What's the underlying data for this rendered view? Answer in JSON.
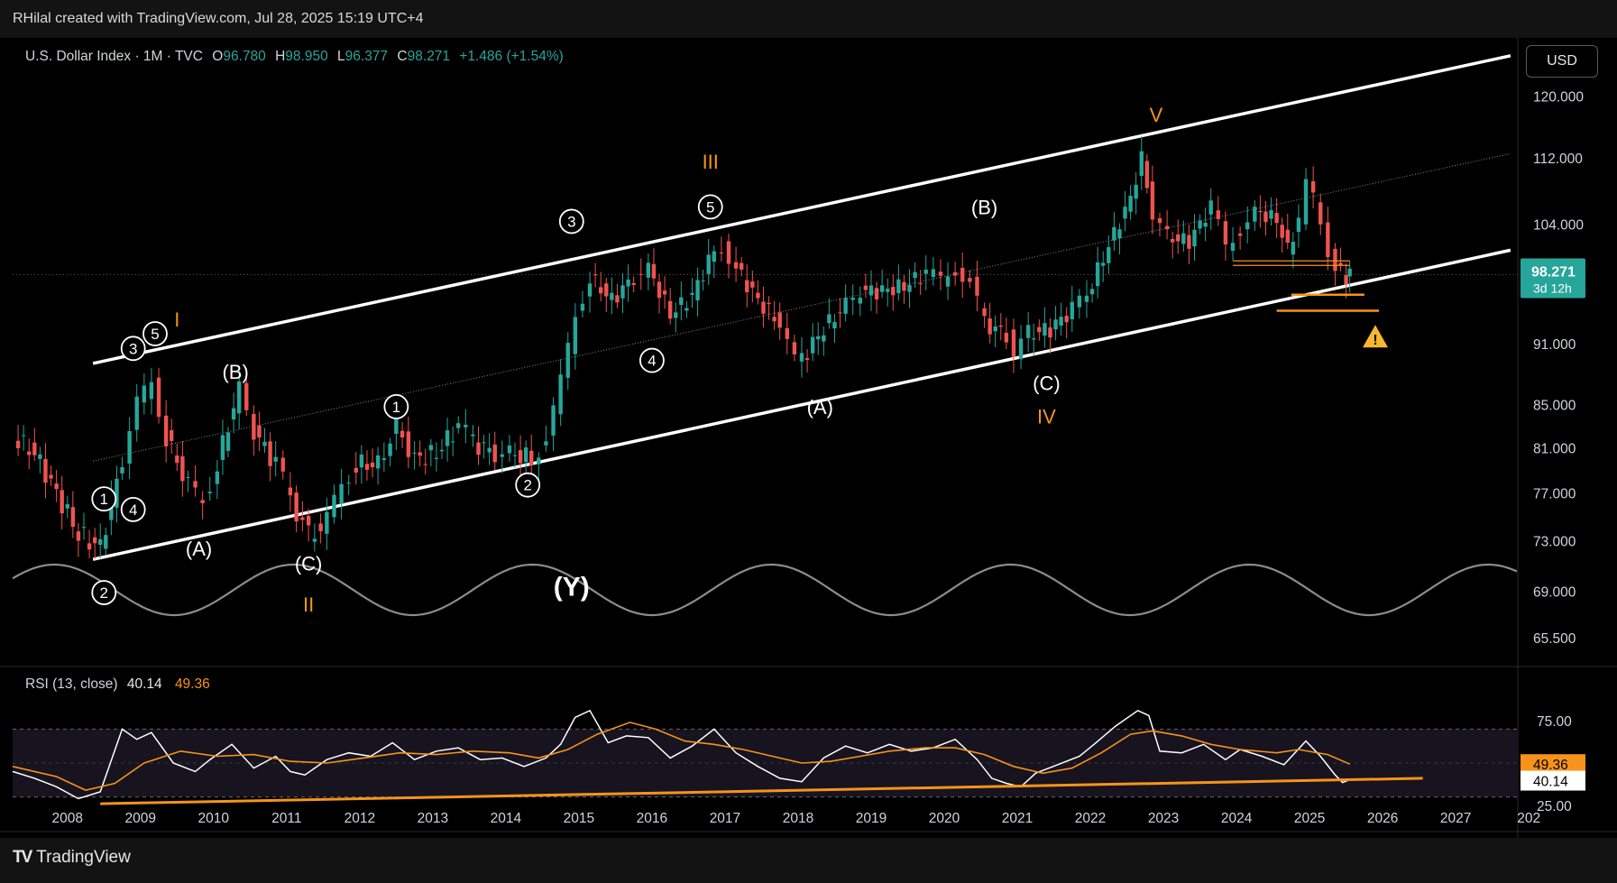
{
  "header": {
    "caption": "RHilal created with TradingView.com, Jul 28, 2025 15:19 UTC+4"
  },
  "legend": {
    "symbol": "U.S. Dollar Index · 1M · TVC",
    "o_label": "O",
    "open": "96.780",
    "h_label": "H",
    "high": "98.950",
    "l_label": "L",
    "low": "96.377",
    "c_label": "C",
    "close": "98.271",
    "change": "+1.486 (+1.54%)"
  },
  "currency_button": "USD",
  "price_badge": {
    "price": "98.271",
    "countdown": "3d 12h"
  },
  "rsi_legend": {
    "title": "RSI (13, close)",
    "rsi_value": "40.14",
    "ma_value": "49.36"
  },
  "footer": {
    "brand": "TradingView"
  },
  "colors": {
    "up": "#26a69a",
    "down": "#ef5350",
    "accent": "#f7931a",
    "channel": "#ffffff",
    "sine": "#8c8c8c",
    "badge": "#26a69a"
  },
  "chart_data": [
    {
      "type": "candlestick",
      "title": "U.S. Dollar Index · 1M · TVC",
      "x_ticks": [
        "2008",
        "2009",
        "2010",
        "2011",
        "2012",
        "2013",
        "2014",
        "2015",
        "2016",
        "2017",
        "2018",
        "2019",
        "2020",
        "2021",
        "2022",
        "2023",
        "2024",
        "2025",
        "2026",
        "2027",
        "202"
      ],
      "y_ticks": [
        "120.000",
        "112.000",
        "104.000",
        "98.271",
        "91.000",
        "85.000",
        "81.000",
        "77.000",
        "73.000",
        "69.000",
        "65.500"
      ],
      "y_scale": "log",
      "ylim": [
        63.5,
        127
      ],
      "xlim": [
        2007.3,
        2027.9
      ],
      "close_series": [
        [
          2007.3,
          82
        ],
        [
          2007.6,
          80.5
        ],
        [
          2007.9,
          77
        ],
        [
          2008.2,
          73.5
        ],
        [
          2008.5,
          72.5
        ],
        [
          2008.8,
          80
        ],
        [
          2009.0,
          85
        ],
        [
          2009.2,
          87
        ],
        [
          2009.4,
          82
        ],
        [
          2009.7,
          77.5
        ],
        [
          2009.9,
          76.5
        ],
        [
          2010.1,
          79.5
        ],
        [
          2010.4,
          86.5
        ],
        [
          2010.6,
          82.5
        ],
        [
          2010.9,
          79.5
        ],
        [
          2011.1,
          76.5
        ],
        [
          2011.35,
          73.5
        ],
        [
          2011.6,
          74.5
        ],
        [
          2011.8,
          78
        ],
        [
          2012.0,
          79.5
        ],
        [
          2012.3,
          79.5
        ],
        [
          2012.55,
          83
        ],
        [
          2012.8,
          80
        ],
        [
          2013.1,
          80.5
        ],
        [
          2013.4,
          83
        ],
        [
          2013.6,
          81.5
        ],
        [
          2013.9,
          80.5
        ],
        [
          2014.1,
          80.5
        ],
        [
          2014.4,
          80
        ],
        [
          2014.6,
          82
        ],
        [
          2014.8,
          87
        ],
        [
          2015.0,
          94
        ],
        [
          2015.2,
          98
        ],
        [
          2015.5,
          95.5
        ],
        [
          2015.8,
          98
        ],
        [
          2016.0,
          99
        ],
        [
          2016.3,
          94
        ],
        [
          2016.6,
          96
        ],
        [
          2016.9,
          101
        ],
        [
          2017.0,
          101.5
        ],
        [
          2017.2,
          99
        ],
        [
          2017.5,
          95.5
        ],
        [
          2017.8,
          93
        ],
        [
          2018.0,
          89
        ],
        [
          2018.1,
          89.5
        ],
        [
          2018.4,
          92.5
        ],
        [
          2018.7,
          95
        ],
        [
          2018.9,
          96.5
        ],
        [
          2019.2,
          96.5
        ],
        [
          2019.5,
          97
        ],
        [
          2019.8,
          98.5
        ],
        [
          2020.0,
          97.5
        ],
        [
          2020.2,
          99
        ],
        [
          2020.4,
          97.5
        ],
        [
          2020.6,
          93
        ],
        [
          2020.9,
          92
        ],
        [
          2021.0,
          90
        ],
        [
          2021.2,
          92
        ],
        [
          2021.5,
          92.5
        ],
        [
          2021.8,
          94.5
        ],
        [
          2022.0,
          96
        ],
        [
          2022.3,
          101.5
        ],
        [
          2022.6,
          107
        ],
        [
          2022.75,
          112
        ],
        [
          2022.9,
          105
        ],
        [
          2023.1,
          102.5
        ],
        [
          2023.4,
          102
        ],
        [
          2023.7,
          106
        ],
        [
          2023.9,
          101.5
        ],
        [
          2024.1,
          103.5
        ],
        [
          2024.3,
          105.5
        ],
        [
          2024.6,
          104.5
        ],
        [
          2024.75,
          101
        ],
        [
          2024.9,
          104.5
        ],
        [
          2025.0,
          108.5
        ],
        [
          2025.1,
          107
        ],
        [
          2025.3,
          101
        ],
        [
          2025.4,
          99.5
        ],
        [
          2025.55,
          97.5
        ],
        [
          2025.6,
          98.271
        ]
      ],
      "last_close": 98.271,
      "channel_upper": [
        [
          2008.4,
          89
        ],
        [
          2027.8,
          125.5
        ]
      ],
      "channel_lower": [
        [
          2008.4,
          71.5
        ],
        [
          2027.8,
          101
        ]
      ],
      "channel_mid": [
        [
          2008.4,
          79.8
        ],
        [
          2027.8,
          112.5
        ]
      ],
      "support_lines": [
        {
          "from": [
            2024.0,
            99.8
          ],
          "to": [
            2025.6,
            99.8
          ],
          "color": "#f7931a"
        },
        {
          "from": [
            2024.0,
            99.3
          ],
          "to": [
            2025.6,
            99.3
          ],
          "color": "#f7931a"
        },
        {
          "from": [
            2024.8,
            96.1
          ],
          "to": [
            2025.8,
            96.1
          ],
          "color": "#f7931a"
        },
        {
          "from": [
            2024.6,
            94.4
          ],
          "to": [
            2026.0,
            94.4
          ],
          "color": "#f7931a"
        }
      ],
      "wave_labels": [
        {
          "text": "I",
          "x": 2009.55,
          "y": 93.5,
          "color": "#f7931a"
        },
        {
          "text": "3",
          "x": 2008.95,
          "y": 90.5,
          "circled": true
        },
        {
          "text": "5",
          "x": 2009.25,
          "y": 92,
          "circled": true
        },
        {
          "text": "1",
          "x": 2008.55,
          "y": 76.5,
          "circled": true
        },
        {
          "text": "4",
          "x": 2008.95,
          "y": 75.6,
          "circled": true
        },
        {
          "text": "2",
          "x": 2008.55,
          "y": 68.9,
          "circled": true
        },
        {
          "text": "(A)",
          "x": 2009.85,
          "y": 72.4
        },
        {
          "text": "(B)",
          "x": 2010.35,
          "y": 88.2
        },
        {
          "text": "(C)",
          "x": 2011.35,
          "y": 71.2
        },
        {
          "text": "II",
          "x": 2011.35,
          "y": 68.0,
          "color": "#f7931a"
        },
        {
          "text": "1",
          "x": 2012.55,
          "y": 84.8,
          "circled": true
        },
        {
          "text": "2",
          "x": 2014.35,
          "y": 77.7,
          "circled": true
        },
        {
          "text": "(Y)",
          "x": 2014.95,
          "y": 69.2
        },
        {
          "text": "3",
          "x": 2014.95,
          "y": 104.3,
          "circled": true
        },
        {
          "text": "III",
          "x": 2016.85,
          "y": 111.5,
          "color": "#f7931a"
        },
        {
          "text": "5",
          "x": 2016.85,
          "y": 106.0,
          "circled": true
        },
        {
          "text": "4",
          "x": 2016.05,
          "y": 89.3,
          "circled": true
        },
        {
          "text": "(A)",
          "x": 2018.35,
          "y": 84.8
        },
        {
          "text": "(B)",
          "x": 2020.6,
          "y": 106.0
        },
        {
          "text": "(C)",
          "x": 2021.45,
          "y": 87.1
        },
        {
          "text": "IV",
          "x": 2021.45,
          "y": 83.9,
          "color": "#f7931a"
        },
        {
          "text": "V",
          "x": 2022.95,
          "y": 117.5,
          "color": "#f7931a"
        }
      ],
      "annotations": [
        "warning-triangle"
      ],
      "overlay": "sine-cycle"
    },
    {
      "type": "line",
      "title": "RSI (13, close)",
      "ylim": [
        17,
        83
      ],
      "y_ticks": [
        "75.00",
        "49.36",
        "40.14",
        "25.00"
      ],
      "bands": [
        30,
        70
      ],
      "series": [
        {
          "name": "RSI",
          "color": "#ffffff",
          "values": [
            [
              2007.3,
              45
            ],
            [
              2007.6,
              41
            ],
            [
              2007.9,
              36
            ],
            [
              2008.2,
              29
            ],
            [
              2008.5,
              33
            ],
            [
              2008.8,
              70
            ],
            [
              2009.0,
              64
            ],
            [
              2009.2,
              68
            ],
            [
              2009.5,
              50
            ],
            [
              2009.8,
              45
            ],
            [
              2010.0,
              52
            ],
            [
              2010.3,
              61
            ],
            [
              2010.6,
              47
            ],
            [
              2010.9,
              54
            ],
            [
              2011.1,
              45
            ],
            [
              2011.3,
              43
            ],
            [
              2011.6,
              52
            ],
            [
              2011.9,
              56
            ],
            [
              2012.2,
              54
            ],
            [
              2012.5,
              62
            ],
            [
              2012.8,
              52
            ],
            [
              2013.1,
              57
            ],
            [
              2013.4,
              59
            ],
            [
              2013.7,
              52
            ],
            [
              2014.0,
              53
            ],
            [
              2014.3,
              48
            ],
            [
              2014.6,
              53
            ],
            [
              2014.8,
              61
            ],
            [
              2015.0,
              77
            ],
            [
              2015.2,
              81
            ],
            [
              2015.45,
              62
            ],
            [
              2015.7,
              66
            ],
            [
              2016.0,
              65
            ],
            [
              2016.3,
              53
            ],
            [
              2016.6,
              60
            ],
            [
              2016.9,
              70
            ],
            [
              2017.2,
              56
            ],
            [
              2017.5,
              48
            ],
            [
              2017.8,
              41
            ],
            [
              2018.1,
              39
            ],
            [
              2018.4,
              53
            ],
            [
              2018.7,
              60
            ],
            [
              2019.0,
              56
            ],
            [
              2019.3,
              61
            ],
            [
              2019.6,
              57
            ],
            [
              2019.9,
              59
            ],
            [
              2020.2,
              64
            ],
            [
              2020.5,
              52
            ],
            [
              2020.7,
              41
            ],
            [
              2020.9,
              38
            ],
            [
              2021.1,
              36
            ],
            [
              2021.3,
              44
            ],
            [
              2021.6,
              49
            ],
            [
              2021.9,
              54
            ],
            [
              2022.1,
              61
            ],
            [
              2022.4,
              72
            ],
            [
              2022.7,
              81
            ],
            [
              2022.85,
              78
            ],
            [
              2023.0,
              57
            ],
            [
              2023.3,
              56
            ],
            [
              2023.6,
              61
            ],
            [
              2023.9,
              52
            ],
            [
              2024.1,
              58
            ],
            [
              2024.4,
              54
            ],
            [
              2024.7,
              49
            ],
            [
              2025.0,
              63
            ],
            [
              2025.2,
              54
            ],
            [
              2025.4,
              43
            ],
            [
              2025.5,
              38.5
            ],
            [
              2025.6,
              40.14
            ]
          ]
        },
        {
          "name": "RSI MA",
          "color": "#f7931a",
          "values": [
            [
              2007.3,
              48
            ],
            [
              2007.9,
              42
            ],
            [
              2008.3,
              34
            ],
            [
              2008.7,
              38
            ],
            [
              2009.1,
              50
            ],
            [
              2009.6,
              57
            ],
            [
              2010.1,
              54
            ],
            [
              2010.6,
              55
            ],
            [
              2011.1,
              51
            ],
            [
              2011.6,
              50
            ],
            [
              2012.1,
              53
            ],
            [
              2012.6,
              56
            ],
            [
              2013.1,
              55
            ],
            [
              2013.6,
              57
            ],
            [
              2014.1,
              56
            ],
            [
              2014.5,
              53
            ],
            [
              2014.9,
              58
            ],
            [
              2015.3,
              67
            ],
            [
              2015.75,
              74
            ],
            [
              2016.1,
              70
            ],
            [
              2016.5,
              63
            ],
            [
              2016.9,
              61
            ],
            [
              2017.3,
              58
            ],
            [
              2017.7,
              54
            ],
            [
              2018.1,
              50
            ],
            [
              2018.5,
              51
            ],
            [
              2018.9,
              54
            ],
            [
              2019.3,
              57
            ],
            [
              2019.8,
              59
            ],
            [
              2020.2,
              59
            ],
            [
              2020.6,
              55
            ],
            [
              2021.0,
              48
            ],
            [
              2021.4,
              44
            ],
            [
              2021.8,
              47
            ],
            [
              2022.2,
              56
            ],
            [
              2022.6,
              67
            ],
            [
              2022.9,
              69
            ],
            [
              2023.3,
              66
            ],
            [
              2023.7,
              61
            ],
            [
              2024.1,
              58
            ],
            [
              2024.6,
              56
            ],
            [
              2024.9,
              58
            ],
            [
              2025.3,
              55
            ],
            [
              2025.6,
              49.36
            ]
          ]
        }
      ],
      "trendline": {
        "from": [
          2008.5,
          26
        ],
        "to": [
          2026.6,
          41
        ]
      }
    }
  ]
}
